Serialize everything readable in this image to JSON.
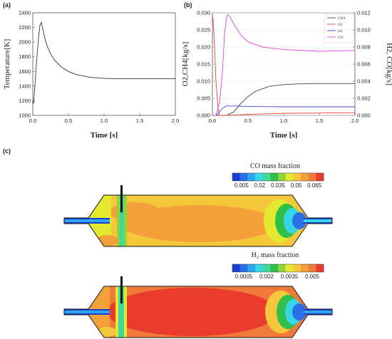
{
  "panels": {
    "a": "(a)",
    "b": "(b)",
    "c": "(c)"
  },
  "chart_data": [
    {
      "id": "a",
      "type": "line",
      "xlabel": "Time [s]",
      "ylabel": "Temperature[K]",
      "xlim": [
        0.0,
        2.0
      ],
      "ylim": [
        1000,
        2400
      ],
      "xticks": [
        "0.0",
        "0.5",
        "1.0",
        "1.5",
        "2.0"
      ],
      "yticks": [
        "1000",
        "1200",
        "1400",
        "1600",
        "1800",
        "2000",
        "2200",
        "2400"
      ],
      "series": [
        {
          "color": "#333333",
          "x": [
            0.0,
            0.01,
            0.03,
            0.05,
            0.08,
            0.1,
            0.12,
            0.14,
            0.17,
            0.2,
            0.25,
            0.3,
            0.4,
            0.5,
            0.6,
            0.8,
            1.0,
            1.2,
            1.5,
            2.0
          ],
          "y": [
            1200,
            1160,
            1400,
            1700,
            2050,
            2230,
            2270,
            2180,
            2050,
            1950,
            1840,
            1760,
            1660,
            1600,
            1560,
            1520,
            1505,
            1500,
            1500,
            1500
          ]
        }
      ]
    },
    {
      "id": "b",
      "type": "line",
      "xlabel": "Time [s]",
      "ylabel_left": "O2,CH4[kg/s]",
      "ylabel_right": "H2, CO[kg/s]",
      "xlim": [
        0.0,
        2.0
      ],
      "ylim_left": [
        0.0,
        0.03
      ],
      "ylim_right": [
        0.0,
        0.012
      ],
      "xticks": [
        "0.0",
        "0.5",
        "1.0",
        "1.5",
        "2.0"
      ],
      "yticks_left": [
        "0.000",
        "0.005",
        "0.010",
        "0.015",
        "0.020",
        "0.025",
        "0.030"
      ],
      "yticks_right": [
        "0.000",
        "0.002",
        "0.004",
        "0.006",
        "0.008",
        "0.010",
        "0.012"
      ],
      "legend": [
        "CH4",
        "O2",
        "H2",
        "CO"
      ],
      "legend_position": "top-right",
      "series": [
        {
          "name": "CH4",
          "axis": "left",
          "color": "#444444",
          "x": [
            0.0,
            0.2,
            0.3,
            0.4,
            0.5,
            0.6,
            0.8,
            1.0,
            1.2,
            1.5,
            2.0
          ],
          "y": [
            0.0,
            0.0,
            0.001,
            0.0035,
            0.0055,
            0.007,
            0.0085,
            0.009,
            0.0092,
            0.0093,
            0.0093
          ]
        },
        {
          "name": "O2",
          "axis": "left",
          "color": "#e8402a",
          "x": [
            0.0,
            0.01,
            0.03,
            0.05,
            0.08,
            0.1,
            0.15,
            0.3,
            0.5,
            1.0,
            1.5,
            2.0
          ],
          "y": [
            0.029,
            0.028,
            0.02,
            0.01,
            0.002,
            0.0,
            0.0,
            0.0001,
            0.0003,
            0.0006,
            0.0007,
            0.0008
          ]
        },
        {
          "name": "H2",
          "axis": "right",
          "color": "#3a4fbf",
          "x": [
            0.0,
            0.05,
            0.1,
            0.15,
            0.2,
            0.3,
            0.5,
            1.0,
            1.5,
            2.0
          ],
          "y": [
            0.0,
            0.0,
            0.0004,
            0.0009,
            0.0011,
            0.0011,
            0.00105,
            0.001,
            0.001,
            0.001
          ]
        },
        {
          "name": "CO",
          "axis": "right",
          "color": "#e040e0",
          "x": [
            0.0,
            0.05,
            0.1,
            0.14,
            0.17,
            0.2,
            0.22,
            0.25,
            0.3,
            0.4,
            0.5,
            0.7,
            1.0,
            1.5,
            2.0
          ],
          "y": [
            0.0,
            0.0,
            0.0015,
            0.005,
            0.0095,
            0.0115,
            0.0118,
            0.0115,
            0.0107,
            0.0094,
            0.0086,
            0.008,
            0.0077,
            0.0075,
            0.0076
          ]
        }
      ]
    }
  ],
  "contours": [
    {
      "title": "CO mass fraction",
      "ticks": [
        "0.005",
        "0.02",
        "0.035",
        "0.05",
        "0.065"
      ]
    },
    {
      "title": "H₂ mass fraction",
      "ticks": [
        "0.0005",
        "0.002",
        "0.0035",
        "0.005"
      ]
    }
  ],
  "colormap": [
    "#1a3fd6",
    "#2a6ee8",
    "#2fa5ee",
    "#36d6e6",
    "#3fd89a",
    "#2ec04a",
    "#8fd43a",
    "#e4e82e",
    "#f4c83a",
    "#f3a03a",
    "#f07a3a",
    "#ea3b2c"
  ]
}
